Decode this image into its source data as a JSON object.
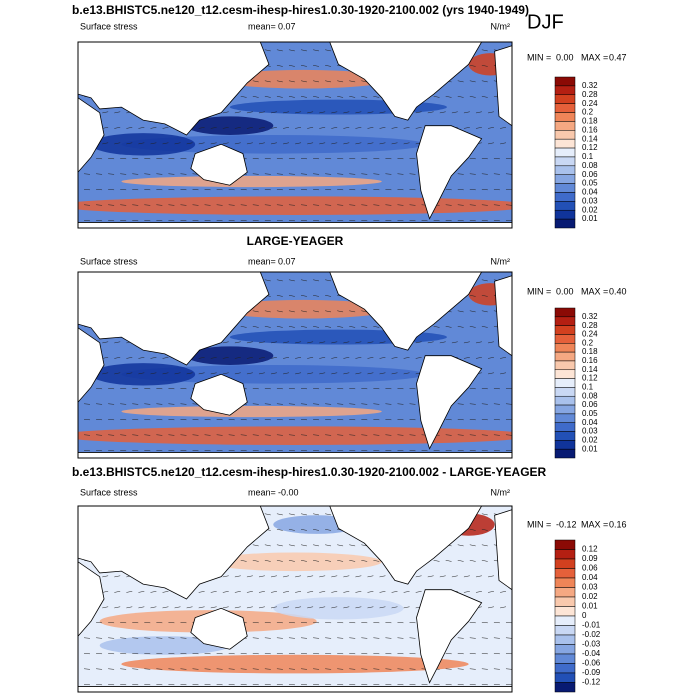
{
  "season": "DJF",
  "panels": [
    {
      "title": "b.e13.BHISTC5.ne120_t12.cesm-ihesp-hires1.0.30-1920-2100.002 (yrs 1940-1949)",
      "field": "Surface stress",
      "mean_label": "mean=",
      "mean_value": "0.07",
      "units": "N/m²",
      "min_label": "MIN =",
      "min_value": "0.00",
      "max_label": "MAX =",
      "max_value": "0.47",
      "levels": [
        "0.32",
        "0.28",
        "0.24",
        "0.2",
        "0.18",
        "0.16",
        "0.14",
        "0.12",
        "0.1",
        "0.08",
        "0.06",
        "0.05",
        "0.04",
        "0.03",
        "0.02",
        "0.01"
      ],
      "colors": [
        "#8b0a05",
        "#b41f12",
        "#d2401f",
        "#e5603a",
        "#ef8558",
        "#f5a882",
        "#f9c9ad",
        "#fde5d6",
        "#e6eefb",
        "#c9d8f4",
        "#a9c1ec",
        "#86a6e2",
        "#6189d7",
        "#3f6bca",
        "#2250b6",
        "#10349b",
        "#081a72"
      ]
    },
    {
      "title": "LARGE-YEAGER",
      "field": "Surface stress",
      "mean_label": "mean=",
      "mean_value": "0.07",
      "units": "N/m²",
      "min_label": "MIN =",
      "min_value": "0.00",
      "max_label": "MAX =",
      "max_value": "0.40",
      "levels": [
        "0.32",
        "0.28",
        "0.24",
        "0.2",
        "0.18",
        "0.16",
        "0.14",
        "0.12",
        "0.1",
        "0.08",
        "0.06",
        "0.05",
        "0.04",
        "0.03",
        "0.02",
        "0.01"
      ],
      "colors": [
        "#8b0a05",
        "#b41f12",
        "#d2401f",
        "#e5603a",
        "#ef8558",
        "#f5a882",
        "#f9c9ad",
        "#fde5d6",
        "#e6eefb",
        "#c9d8f4",
        "#a9c1ec",
        "#86a6e2",
        "#6189d7",
        "#3f6bca",
        "#2250b6",
        "#10349b",
        "#081a72"
      ]
    },
    {
      "title": "b.e13.BHISTC5.ne120_t12.cesm-ihesp-hires1.0.30-1920-2100.002 - LARGE-YEAGER",
      "field": "Surface stress",
      "mean_label": "mean=",
      "mean_value": "-0.00",
      "units": "N/m²",
      "min_label": "MIN =",
      "min_value": "-0.12",
      "max_label": "MAX =",
      "max_value": "0.16",
      "levels": [
        "0.12",
        "0.09",
        "0.06",
        "0.04",
        "0.03",
        "0.02",
        "0.01",
        "0",
        "-0.01",
        "-0.02",
        "-0.03",
        "-0.04",
        "-0.06",
        "-0.09",
        "-0.12"
      ],
      "colors": [
        "#8b0a05",
        "#b41f12",
        "#d2401f",
        "#e5603a",
        "#ef8558",
        "#f5a882",
        "#f9c9ad",
        "#fde5d6",
        "#e6eefb",
        "#c9d8f4",
        "#a9c1ec",
        "#86a6e2",
        "#6189d7",
        "#3f6bca",
        "#2250b6",
        "#081a72"
      ]
    }
  ]
}
